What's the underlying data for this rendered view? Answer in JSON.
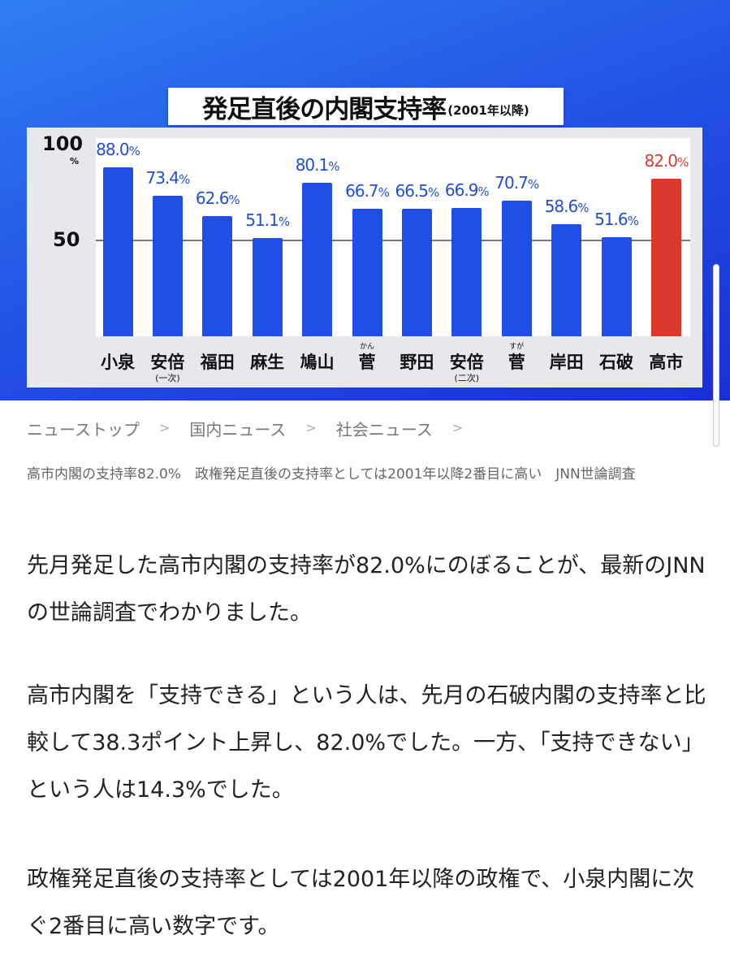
{
  "chart_data": {
    "type": "bar",
    "title": "発足直後の内閣支持率",
    "subtitle": "(2001年以降)",
    "categories": [
      "小泉",
      "安倍",
      "福田",
      "麻生",
      "鳩山",
      "菅",
      "野田",
      "安倍",
      "菅",
      "岸田",
      "石破",
      "高市"
    ],
    "category_notes": [
      "",
      "(一次)",
      "",
      "",
      "",
      "",
      "",
      "(二次)",
      "",
      "",
      "",
      ""
    ],
    "category_ruby": [
      "",
      "",
      "",
      "",
      "",
      "かん",
      "",
      "",
      "すが",
      "",
      "",
      ""
    ],
    "values": [
      88.0,
      73.4,
      62.6,
      51.1,
      80.1,
      66.7,
      66.5,
      66.9,
      70.7,
      58.6,
      51.6,
      82.0
    ],
    "value_labels": [
      "88.0%",
      "73.4%",
      "62.6%",
      "51.1%",
      "80.1%",
      "66.7%",
      "66.5%",
      "66.9%",
      "70.7%",
      "58.6%",
      "51.6%",
      "82.0%"
    ],
    "highlight_index": 11,
    "yticks": [
      "100",
      "50"
    ],
    "yunit": "%",
    "ylim": [
      0,
      100
    ],
    "xlabel": "",
    "ylabel": "",
    "colors": {
      "bar": "#1f4fe6",
      "highlight": "#d93a2b",
      "label": "#1f4fd0",
      "highlight_label": "#d93a2b"
    }
  },
  "breadcrumb": [
    "ニューストップ",
    "国内ニュース",
    "社会ニュース"
  ],
  "breadcrumb_sep": ">",
  "headline": "高市内閣の支持率82.0%　政権発足直後の支持率としては2001年以降2番目に高い　JNN世論調査",
  "paragraphs": [
    "先月発足した高市内閣の支持率が82.0%にのぼることが、最新のJNNの世論調査でわかりました。",
    "高市内閣を「支持できる」という人は、先月の石破内閣の支持率と比較して38.3ポイント上昇し、82.0%でした。一方、「支持できない」という人は14.3%でした。",
    "政権発足直後の支持率としては2001年以降の政権で、小泉内閣に次ぐ2番目に高い数字です。"
  ]
}
